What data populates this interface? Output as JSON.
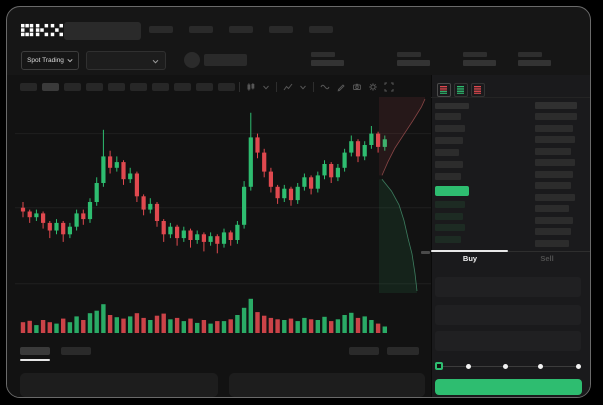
{
  "meta": {
    "app_logo": "OKX",
    "screen": "spot-trading-terminal"
  },
  "colors": {
    "background": "#000000",
    "surface": "#161616",
    "chart_bg": "#121212",
    "panel_bg": "#1a1a1c",
    "green": "#2ebd70",
    "red": "#e0494f",
    "placeholder": "#2a2a2a",
    "grid": "#1f1f1f",
    "text": "#ededed",
    "text_dim": "#4f4f4f"
  },
  "header": {
    "logo_text": "OKX",
    "search": {
      "placeholder_visible_text": ""
    },
    "nav_placeholder_count": 5
  },
  "subheader": {
    "market_selector_label": "Spot Trading",
    "stats_placeholder_count": 4
  },
  "chart_toolbar": {
    "interval_placeholder_count": 10,
    "active_interval_index": 1,
    "icons": [
      "candle-type",
      "chevron-down",
      "indicators",
      "chevron-down",
      "line-style",
      "draw",
      "camera",
      "settings",
      "fullscreen"
    ]
  },
  "orderbook": {
    "mode_icons": [
      "book-asks-bids",
      "book-bids-only",
      "book-asks-only"
    ],
    "ask_bar_widths": [
      26,
      30,
      28,
      24,
      28,
      26
    ],
    "amount_bar_widths": [
      42,
      38,
      40,
      36,
      40,
      38,
      36,
      40,
      34,
      38,
      36,
      34
    ],
    "bid_bar_widths": [
      30,
      28,
      30,
      26
    ],
    "last_price_block": {
      "color": "#2ebd70",
      "text": ""
    }
  },
  "trade_form": {
    "tabs": [
      {
        "label": "Buy",
        "active": true
      },
      {
        "label": "Sell",
        "active": false
      }
    ],
    "field_count": 3,
    "slider": {
      "stop_count": 5,
      "selected_index": 0,
      "handle_color": "#2ebd70"
    },
    "submit_button": {
      "color": "#2ebd70",
      "text": ""
    }
  },
  "bottom_tabs": {
    "placeholder_count": 2,
    "active_index": 0,
    "right_placeholder_count": 2,
    "panel_count": 2
  },
  "chart_data": {
    "type": "candlestick",
    "axes_visible": false,
    "price_scale_normalized": [
      0,
      100
    ],
    "gridline_values": [
      86,
      47,
      7
    ],
    "up_color": "#2ebd70",
    "down_color": "#e0494f",
    "candles": [
      [
        47,
        50,
        42,
        45
      ],
      [
        45,
        46,
        39,
        42
      ],
      [
        42,
        46,
        40,
        44
      ],
      [
        44,
        45,
        36,
        39
      ],
      [
        39,
        40,
        31,
        35
      ],
      [
        35,
        41,
        33,
        39
      ],
      [
        39,
        40,
        29,
        33
      ],
      [
        33,
        39,
        31,
        37
      ],
      [
        37,
        46,
        35,
        44
      ],
      [
        44,
        46,
        38,
        41
      ],
      [
        41,
        52,
        39,
        50
      ],
      [
        50,
        63,
        48,
        60
      ],
      [
        60,
        88,
        58,
        74
      ],
      [
        74,
        77,
        65,
        68
      ],
      [
        68,
        74,
        66,
        71
      ],
      [
        71,
        72,
        59,
        62
      ],
      [
        62,
        68,
        60,
        65
      ],
      [
        65,
        66,
        50,
        53
      ],
      [
        53,
        54,
        43,
        46
      ],
      [
        46,
        52,
        44,
        49
      ],
      [
        49,
        50,
        37,
        40
      ],
      [
        40,
        41,
        29,
        33
      ],
      [
        33,
        39,
        31,
        37
      ],
      [
        37,
        38,
        27,
        31
      ],
      [
        31,
        37,
        29,
        35
      ],
      [
        35,
        36,
        26,
        30
      ],
      [
        30,
        35,
        28,
        33
      ],
      [
        33,
        34,
        24,
        29
      ],
      [
        29,
        34,
        27,
        32
      ],
      [
        32,
        33,
        23,
        28
      ],
      [
        28,
        36,
        26,
        34
      ],
      [
        34,
        35,
        27,
        30
      ],
      [
        30,
        40,
        28,
        38
      ],
      [
        38,
        61,
        36,
        58
      ],
      [
        58,
        97,
        56,
        84
      ],
      [
        84,
        86,
        73,
        76
      ],
      [
        76,
        78,
        63,
        66
      ],
      [
        66,
        68,
        55,
        58
      ],
      [
        58,
        59,
        49,
        52
      ],
      [
        52,
        59,
        50,
        57
      ],
      [
        57,
        58,
        48,
        51
      ],
      [
        51,
        60,
        49,
        58
      ],
      [
        58,
        65,
        56,
        63
      ],
      [
        63,
        64,
        54,
        57
      ],
      [
        57,
        66,
        55,
        64
      ],
      [
        64,
        72,
        62,
        70
      ],
      [
        70,
        71,
        60,
        63
      ],
      [
        63,
        70,
        61,
        68
      ],
      [
        68,
        78,
        66,
        76
      ],
      [
        76,
        85,
        74,
        82
      ],
      [
        82,
        83,
        71,
        74
      ],
      [
        74,
        82,
        72,
        80
      ],
      [
        80,
        90,
        78,
        86
      ],
      [
        86,
        87,
        76,
        79
      ],
      [
        79,
        85,
        77,
        83
      ]
    ],
    "volume": [
      30,
      34,
      22,
      36,
      30,
      26,
      40,
      30,
      46,
      36,
      55,
      62,
      80,
      50,
      44,
      40,
      46,
      55,
      42,
      36,
      48,
      54,
      38,
      42,
      33,
      40,
      28,
      36,
      26,
      33,
      33,
      38,
      50,
      70,
      95,
      58,
      48,
      42,
      38,
      36,
      40,
      33,
      42,
      38,
      36,
      45,
      33,
      38,
      50,
      56,
      42,
      46,
      36,
      26,
      18
    ],
    "depth_overlay": {
      "asks_curve": [
        [
          0.06,
          0.4
        ],
        [
          0.18,
          0.33
        ],
        [
          0.32,
          0.26
        ],
        [
          0.5,
          0.19
        ],
        [
          0.68,
          0.12
        ],
        [
          0.85,
          0.05
        ],
        [
          0.92,
          0.01
        ]
      ],
      "bids_curve": [
        [
          0.06,
          0.42
        ],
        [
          0.25,
          0.48
        ],
        [
          0.4,
          0.55
        ],
        [
          0.5,
          0.63
        ],
        [
          0.58,
          0.72
        ],
        [
          0.66,
          0.8
        ],
        [
          0.72,
          0.9
        ],
        [
          0.76,
          0.99
        ]
      ],
      "asks_fill": "rgba(220,80,85,0.10)",
      "asks_stroke": "rgba(225,110,110,0.55)",
      "bids_fill": "rgba(46,189,112,0.10)",
      "bids_stroke": "rgba(95,205,155,0.55)"
    }
  }
}
